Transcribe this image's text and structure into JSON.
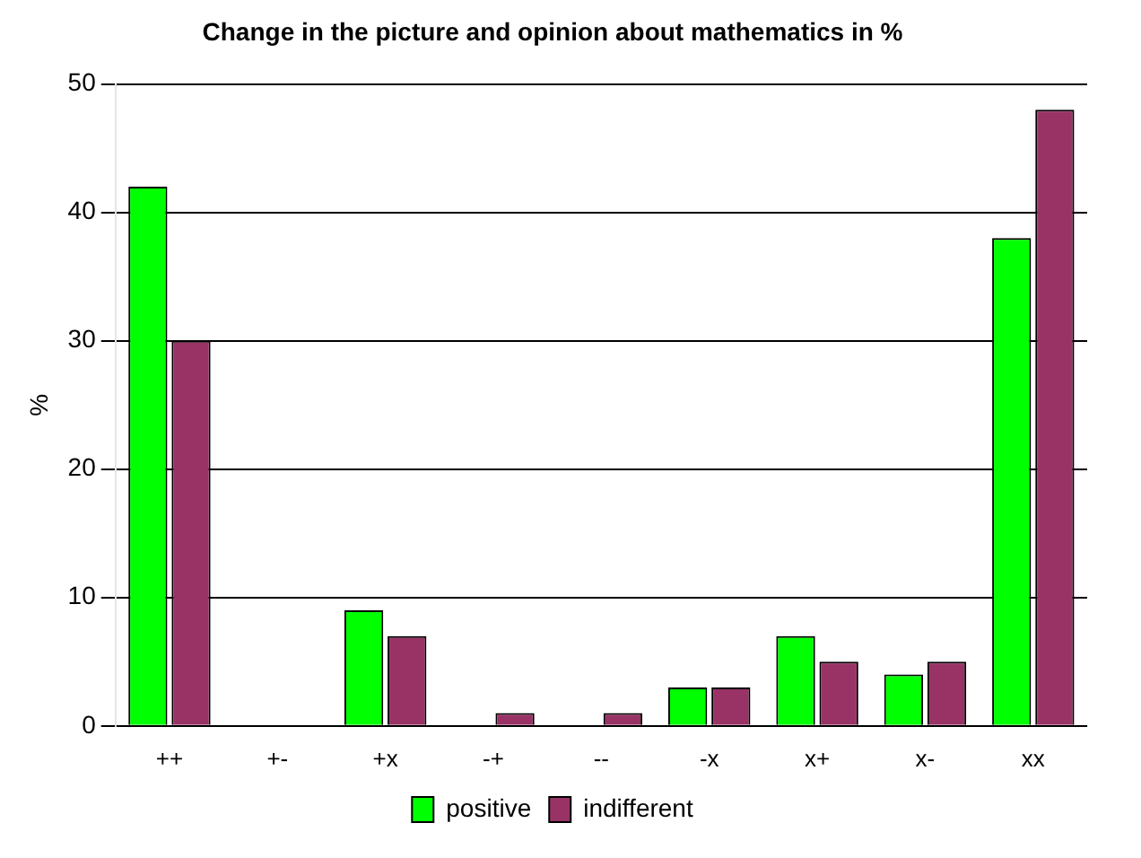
{
  "chart_data": {
    "type": "bar",
    "title": "Change in the picture and opinion about mathematics in %",
    "ylabel": "%",
    "categories": [
      "++",
      "+-",
      "+x",
      "-+",
      "--",
      "-x",
      "x+",
      "x-",
      "xx"
    ],
    "series": [
      {
        "name": "positive",
        "color": "#00ff00",
        "values": [
          42,
          0,
          9,
          0,
          0,
          3,
          7,
          4,
          38
        ]
      },
      {
        "name": "indifferent",
        "color": "#993366",
        "values": [
          30,
          0,
          7,
          1,
          1,
          3,
          5,
          5,
          48
        ]
      }
    ],
    "ylim": [
      0,
      50
    ],
    "yticks": [
      0,
      10,
      20,
      30,
      40,
      50
    ],
    "grid": "y",
    "legend": "bottom"
  }
}
